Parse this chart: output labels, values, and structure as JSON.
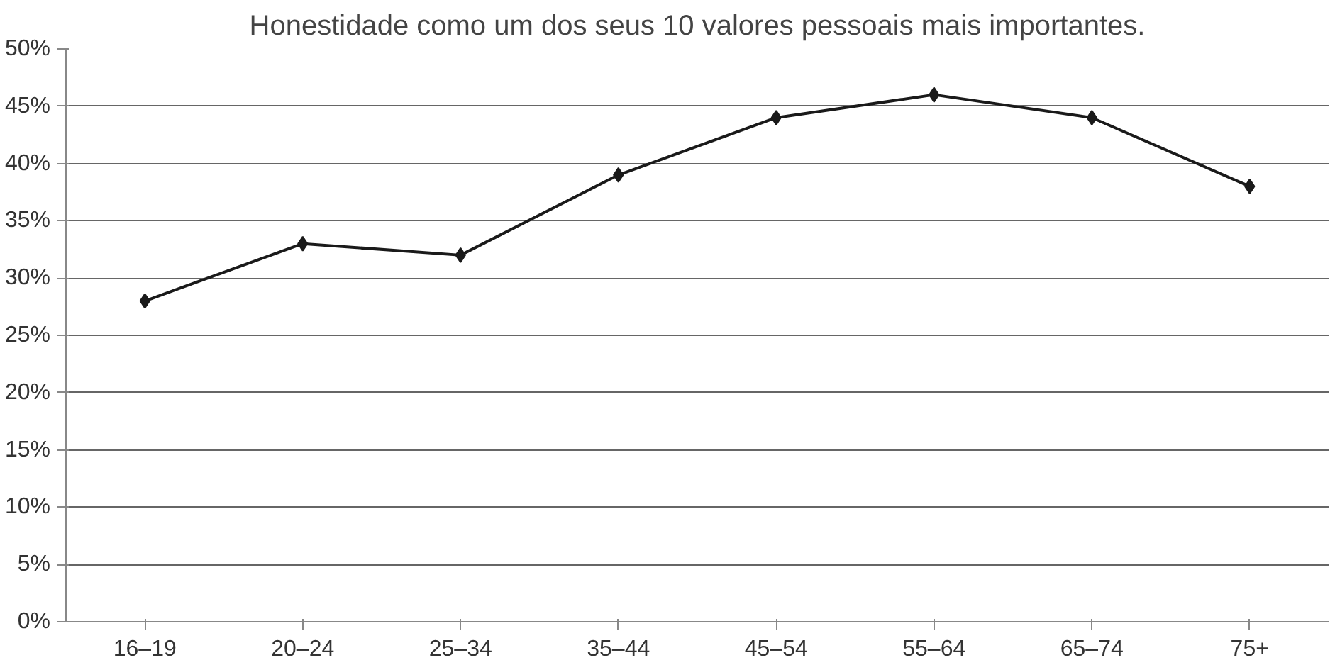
{
  "chart_data": {
    "type": "line",
    "title": "Honestidade como um dos seus 10 valores pessoais mais importantes.",
    "categories": [
      "16–19",
      "20–24",
      "25–34",
      "35–44",
      "45–54",
      "55–64",
      "65–74",
      "75+"
    ],
    "series": [
      {
        "color": "#1a1a1a",
        "values": [
          28,
          33,
          32,
          39,
          44,
          46,
          44,
          38
        ]
      }
    ],
    "ylim": [
      0,
      50
    ],
    "yticks": [
      {
        "value": 0,
        "label": "0%"
      },
      {
        "value": 5,
        "label": "5%"
      },
      {
        "value": 10,
        "label": "10%"
      },
      {
        "value": 15,
        "label": "15%"
      },
      {
        "value": 20,
        "label": "20%"
      },
      {
        "value": 25,
        "label": "25%"
      },
      {
        "value": 30,
        "label": "30%"
      },
      {
        "value": 35,
        "label": "35%"
      },
      {
        "value": 40,
        "label": "40%"
      },
      {
        "value": 45,
        "label": "45%"
      },
      {
        "value": 50,
        "label": "50%"
      }
    ],
    "grid": "y",
    "marker": "diamond",
    "line_style": "solid"
  }
}
